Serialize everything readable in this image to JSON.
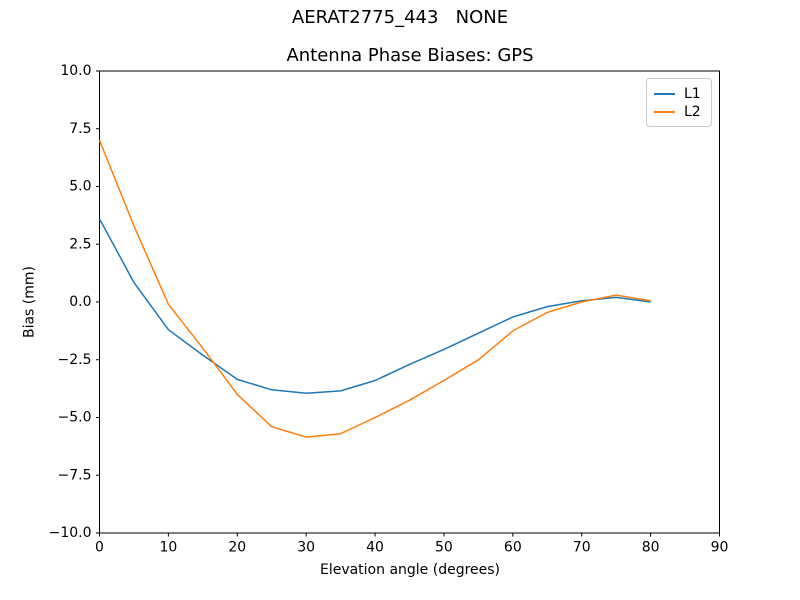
{
  "figure": {
    "suptitle": "AERAT2775_443   NONE"
  },
  "chart_data": {
    "type": "line",
    "title": "Antenna Phase Biases: GPS",
    "xlabel": "Elevation angle (degrees)",
    "ylabel": "Bias (mm)",
    "xlim": [
      0,
      90
    ],
    "ylim": [
      -10,
      10
    ],
    "grid": false,
    "legend_position": "upper right",
    "xticks": [
      0,
      10,
      20,
      30,
      40,
      50,
      60,
      70,
      80,
      90
    ],
    "xtick_labels": [
      "0",
      "10",
      "20",
      "30",
      "40",
      "50",
      "60",
      "70",
      "80",
      "90"
    ],
    "yticks": [
      10.0,
      7.5,
      5.0,
      2.5,
      0.0,
      -2.5,
      -5.0,
      -7.5,
      -10.0
    ],
    "ytick_labels": [
      "10.0",
      "7.5",
      "5.0",
      "2.5",
      "0.0",
      "−2.5",
      "−5.0",
      "−7.5",
      "−10.0"
    ],
    "x": [
      0,
      5,
      10,
      15,
      20,
      25,
      30,
      35,
      40,
      45,
      50,
      55,
      60,
      65,
      70,
      75,
      80
    ],
    "series": [
      {
        "name": "L1",
        "color": "#1f77b4",
        "values": [
          3.6,
          0.85,
          -1.2,
          -2.3,
          -3.35,
          -3.8,
          -3.95,
          -3.85,
          -3.4,
          -2.7,
          -2.05,
          -1.35,
          -0.65,
          -0.2,
          0.05,
          0.2,
          0.0
        ]
      },
      {
        "name": "L2",
        "color": "#ff7f0e",
        "values": [
          7.0,
          3.3,
          -0.1,
          -2.0,
          -4.0,
          -5.4,
          -5.85,
          -5.7,
          -5.0,
          -4.25,
          -3.4,
          -2.5,
          -1.25,
          -0.45,
          0.0,
          0.3,
          0.05
        ]
      }
    ],
    "colors": {
      "spine": "#000000",
      "background": "#ffffff",
      "legend_border": "#cccccc"
    }
  }
}
